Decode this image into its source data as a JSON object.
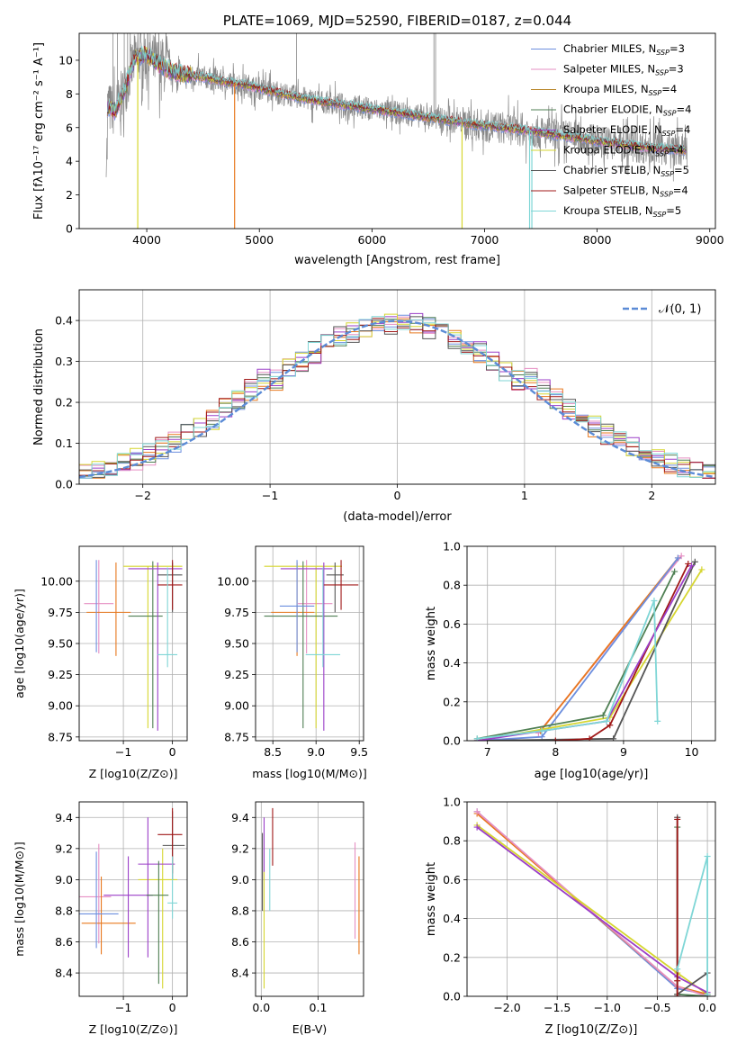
{
  "colors": {
    "c1": "#6c8ede",
    "c2": "#e68fc3",
    "c3": "#b8862a",
    "c4": "#4f7f53",
    "c5": "#9b3fc8",
    "c6": "#d6d630",
    "c7": "#555555",
    "c8": "#a01818",
    "c9": "#7fd6d6",
    "orange": "#e8781e",
    "gray": "#888888",
    "normal": "#5b8bd6",
    "grid": "#b0b0b0"
  },
  "chart_data": [
    {
      "id": "spectrum",
      "type": "line",
      "title": "PLATE=1069, MJD=52590, FIBERID=0187, z=0.044",
      "xlabel": "wavelength [Angstrom, rest frame]",
      "ylabel": "Flux [fλ10⁻¹⁷ erg cm⁻² s⁻¹ A⁻¹]",
      "xlim": [
        3400,
        9050
      ],
      "ylim": [
        0,
        11.6
      ],
      "xticks": [
        4000,
        5000,
        6000,
        7000,
        8000,
        9000
      ],
      "yticks": [
        0,
        2,
        4,
        6,
        8,
        10
      ],
      "legend": "top-right",
      "legend_entries": [
        {
          "label": "Chabrier MILES, N",
          "sub": "SSP",
          "val": "=3",
          "color": "c1"
        },
        {
          "label": "Salpeter MILES, N",
          "sub": "SSP",
          "val": "=3",
          "color": "c2"
        },
        {
          "label": "Kroupa MILES, N",
          "sub": "SSP",
          "val": "=4",
          "color": "c3"
        },
        {
          "label": "Chabrier ELODIE, N",
          "sub": "SSP",
          "val": "=4",
          "color": "c4"
        },
        {
          "label": "Salpeter ELODIE, N",
          "sub": "SSP",
          "val": "=4",
          "color": "c5"
        },
        {
          "label": "Kroupa ELODIE, N",
          "sub": "SSP",
          "val": "=4",
          "color": "c6"
        },
        {
          "label": "Chabrier STELIB, N",
          "sub": "SSP",
          "val": "=5",
          "color": "c7"
        },
        {
          "label": "Salpeter STELIB, N",
          "sub": "SSP",
          "val": "=4",
          "color": "c8"
        },
        {
          "label": "Kroupa STELIB, N",
          "sub": "SSP",
          "val": "=5",
          "color": "c9"
        }
      ],
      "model_continuum": [
        [
          3650,
          7.2
        ],
        [
          3720,
          7.0
        ],
        [
          3800,
          8.2
        ],
        [
          3900,
          10.2
        ],
        [
          4000,
          10.3
        ],
        [
          4100,
          9.8
        ],
        [
          4200,
          9.4
        ],
        [
          4300,
          9.2
        ],
        [
          4500,
          9.0
        ],
        [
          4700,
          8.7
        ],
        [
          4900,
          8.5
        ],
        [
          5200,
          8.0
        ],
        [
          5500,
          7.6
        ],
        [
          5800,
          7.3
        ],
        [
          6100,
          7.0
        ],
        [
          6400,
          6.7
        ],
        [
          6700,
          6.4
        ],
        [
          7000,
          6.1
        ],
        [
          7300,
          5.9
        ],
        [
          7500,
          5.7
        ],
        [
          7800,
          5.4
        ],
        [
          8100,
          5.1
        ],
        [
          8400,
          4.85
        ],
        [
          8700,
          4.7
        ],
        [
          8800,
          4.65
        ]
      ]
    },
    {
      "id": "residuals",
      "type": "histogram",
      "xlabel": "(data-model)/error",
      "ylabel": "Normed distribution",
      "xlim": [
        -2.5,
        2.5
      ],
      "ylim": [
        0,
        0.475
      ],
      "xticks": [
        -2,
        -1,
        0,
        1,
        2
      ],
      "yticks": [
        0.0,
        0.1,
        0.2,
        0.3,
        0.4
      ],
      "legend": "top-right",
      "normal_label": "𝒩(0, 1)",
      "bin_width": 0.1
    },
    {
      "id": "age_vs_z",
      "type": "errorbar",
      "xlabel": "Z [log10(Z/Z⊙)]",
      "ylabel": "age  [log10(age/yr)]",
      "xlim": [
        -1.9,
        0.3
      ],
      "ylim": [
        8.72,
        10.28
      ],
      "xticks": [
        -1,
        0
      ],
      "yticks": [
        8.75,
        9.0,
        9.25,
        9.5,
        9.75,
        10.0
      ],
      "points": [
        {
          "x": -1.5,
          "xerr": [
            0.3,
            0.3
          ],
          "y": 9.82,
          "yerr": [
            0.4,
            0.35
          ],
          "color": "c2"
        },
        {
          "x": -1.15,
          "xerr": [
            0.6,
            0.3
          ],
          "y": 9.75,
          "yerr": [
            0.35,
            0.4
          ],
          "color": "orange"
        },
        {
          "x": -0.5,
          "xerr": [
            0.5,
            0.7
          ],
          "y": 10.12,
          "yerr": [
            1.3,
            0.0
          ],
          "color": "c6"
        },
        {
          "x": -0.4,
          "xerr": [
            0.5,
            0.2
          ],
          "y": 9.72,
          "yerr": [
            0.9,
            0.44
          ],
          "color": "c4"
        },
        {
          "x": -0.3,
          "xerr": [
            0.6,
            0.5
          ],
          "y": 10.1,
          "yerr": [
            1.3,
            0.05
          ],
          "color": "c5"
        },
        {
          "x": 0.0,
          "xerr": [
            0.3,
            0.2
          ],
          "y": 10.05,
          "yerr": [
            0.3,
            0.1
          ],
          "color": "c7"
        },
        {
          "x": 0.0,
          "xerr": [
            0.3,
            0.2
          ],
          "y": 9.97,
          "yerr": [
            0.2,
            0.2
          ],
          "color": "c8"
        },
        {
          "x": -0.1,
          "xerr": [
            0.2,
            0.2
          ],
          "y": 9.41,
          "yerr": [
            0.1,
            0.7
          ],
          "color": "c9"
        },
        {
          "x": -1.55,
          "xerr": [
            0.0,
            0.0
          ],
          "y": 9.8,
          "yerr": [
            0.37,
            0.37
          ],
          "color": "c1"
        }
      ]
    },
    {
      "id": "age_vs_mass",
      "type": "errorbar",
      "xlabel": "mass [log10(M/M⊙)]",
      "ylabel": "",
      "xlim": [
        8.3,
        9.55
      ],
      "ylim": [
        8.72,
        10.28
      ],
      "xticks": [
        8.5,
        9.0,
        9.5
      ],
      "yticks": [
        8.75,
        9.0,
        9.25,
        9.5,
        9.75,
        10.0
      ],
      "points": [
        {
          "x": 8.89,
          "xerr": [
            0.1,
            0.3
          ],
          "y": 9.82,
          "yerr": [
            0.4,
            0.35
          ],
          "color": "c2"
        },
        {
          "x": 8.78,
          "xerr": [
            0.3,
            0.2
          ],
          "y": 9.75,
          "yerr": [
            0.35,
            0.4
          ],
          "color": "orange"
        },
        {
          "x": 9.0,
          "xerr": [
            0.6,
            0.3
          ],
          "y": 10.12,
          "yerr": [
            1.3,
            0.0
          ],
          "color": "c6"
        },
        {
          "x": 8.85,
          "xerr": [
            0.45,
            0.4
          ],
          "y": 9.72,
          "yerr": [
            0.9,
            0.44
          ],
          "color": "c4"
        },
        {
          "x": 9.09,
          "xerr": [
            0.5,
            0.1
          ],
          "y": 10.1,
          "yerr": [
            1.3,
            0.05
          ],
          "color": "c5"
        },
        {
          "x": 9.22,
          "xerr": [
            0.1,
            0.1
          ],
          "y": 10.05,
          "yerr": [
            0.3,
            0.1
          ],
          "color": "c7"
        },
        {
          "x": 9.29,
          "xerr": [
            0.2,
            0.2
          ],
          "y": 9.97,
          "yerr": [
            0.2,
            0.2
          ],
          "color": "c8"
        },
        {
          "x": 9.08,
          "xerr": [
            0.2,
            0.2
          ],
          "y": 9.41,
          "yerr": [
            0.1,
            0.7
          ],
          "color": "c9"
        },
        {
          "x": 8.78,
          "xerr": [
            0.2,
            0.2
          ],
          "y": 9.8,
          "yerr": [
            0.37,
            0.37
          ],
          "color": "c1"
        }
      ]
    },
    {
      "id": "weight_vs_age",
      "type": "line",
      "xlabel": "age  [log10(age/yr)]",
      "ylabel": "mass weight",
      "xlim": [
        6.7,
        10.35
      ],
      "ylim": [
        0,
        1.0
      ],
      "xticks": [
        7,
        8,
        9,
        10
      ],
      "yticks": [
        0.0,
        0.2,
        0.4,
        0.6,
        0.8,
        1.0
      ],
      "series": [
        {
          "color": "c2",
          "points": [
            [
              7.75,
              0.04
            ],
            [
              9.85,
              0.95
            ]
          ]
        },
        {
          "color": "orange",
          "points": [
            [
              7.78,
              0.05
            ],
            [
              9.8,
              0.94
            ]
          ]
        },
        {
          "color": "c1",
          "points": [
            [
              6.85,
              0.0
            ],
            [
              7.8,
              0.02
            ],
            [
              9.8,
              0.94
            ]
          ]
        },
        {
          "color": "c6",
          "points": [
            [
              6.85,
              0.0
            ],
            [
              8.8,
              0.12
            ],
            [
              10.15,
              0.88
            ]
          ]
        },
        {
          "color": "c4",
          "points": [
            [
              6.85,
              0.01
            ],
            [
              8.7,
              0.13
            ],
            [
              9.75,
              0.87
            ]
          ]
        },
        {
          "color": "c7",
          "points": [
            [
              6.85,
              0.0
            ],
            [
              8.85,
              0.01
            ],
            [
              10.05,
              0.92
            ]
          ]
        },
        {
          "color": "c8",
          "points": [
            [
              8.0,
              0.0
            ],
            [
              8.5,
              0.01
            ],
            [
              8.8,
              0.08
            ],
            [
              9.95,
              0.91
            ]
          ]
        },
        {
          "color": "c5",
          "points": [
            [
              6.85,
              0.0
            ],
            [
              8.75,
              0.1
            ],
            [
              10.0,
              0.9
            ]
          ]
        },
        {
          "color": "c9",
          "points": [
            [
              6.85,
              0.01
            ],
            [
              7.8,
              0.05
            ],
            [
              8.75,
              0.1
            ],
            [
              9.45,
              0.72
            ],
            [
              9.5,
              0.1
            ]
          ]
        }
      ]
    },
    {
      "id": "mass_vs_z",
      "type": "errorbar",
      "xlabel": "Z [log10(Z/Z⊙)]",
      "ylabel": "mass [log10(M/M⊙)]",
      "xlim": [
        -1.9,
        0.3
      ],
      "ylim": [
        8.25,
        9.5
      ],
      "xticks": [
        -1,
        0
      ],
      "yticks": [
        8.4,
        8.6,
        8.8,
        9.0,
        9.2,
        9.4
      ],
      "points": [
        {
          "x": -1.5,
          "xerr": [
            0.4,
            0.25
          ],
          "y": 8.89,
          "yerr": [
            0.3,
            0.34
          ],
          "color": "c2"
        },
        {
          "x": -1.45,
          "xerr": [
            0.4,
            0.7
          ],
          "y": 8.72,
          "yerr": [
            0.2,
            0.3
          ],
          "color": "orange"
        },
        {
          "x": -1.55,
          "xerr": [
            0.4,
            0.45
          ],
          "y": 8.78,
          "yerr": [
            0.22,
            0.4
          ],
          "color": "c1"
        },
        {
          "x": -0.9,
          "xerr": [
            0.5,
            0.5
          ],
          "y": 8.9,
          "yerr": [
            0.4,
            0.25
          ],
          "color": "c5"
        },
        {
          "x": -0.2,
          "xerr": [
            0.5,
            0.3
          ],
          "y": 9.0,
          "yerr": [
            0.7,
            0.2
          ],
          "color": "c6"
        },
        {
          "x": -0.5,
          "xerr": [
            0.2,
            0.55
          ],
          "y": 9.1,
          "yerr": [
            0.6,
            0.3
          ],
          "color": "c5"
        },
        {
          "x": -0.28,
          "xerr": [
            0.25,
            0.2
          ],
          "y": 8.9,
          "yerr": [
            0.57,
            0.22
          ],
          "color": "c4"
        },
        {
          "x": 0.0,
          "xerr": [
            0.2,
            0.25
          ],
          "y": 9.22,
          "yerr": [
            0.22,
            0.22
          ],
          "color": "c7"
        },
        {
          "x": 0.0,
          "xerr": [
            0.3,
            0.2
          ],
          "y": 9.29,
          "yerr": [
            0.25,
            0.17
          ],
          "color": "c8"
        },
        {
          "x": 0.0,
          "xerr": [
            0.1,
            0.1
          ],
          "y": 8.85,
          "yerr": [
            0.1,
            0.3
          ],
          "color": "c9"
        }
      ]
    },
    {
      "id": "mass_vs_ebv",
      "type": "errorbar",
      "xlabel": "E(B-V)",
      "ylabel": "",
      "xlim": [
        -0.01,
        0.18
      ],
      "ylim": [
        8.25,
        9.5
      ],
      "xticks": [
        0.0,
        0.1
      ],
      "yticks": [
        8.4,
        8.6,
        8.8,
        9.0,
        9.2,
        9.4
      ],
      "points": [
        {
          "x": 0.005,
          "xerr": [
            0,
            0
          ],
          "y": 9.3,
          "yerr": [
            0.3,
            0.1
          ],
          "color": "c5"
        },
        {
          "x": 0.02,
          "xerr": [
            0,
            0
          ],
          "y": 9.29,
          "yerr": [
            0.2,
            0.17
          ],
          "color": "c8"
        },
        {
          "x": 0.015,
          "xerr": [
            0,
            0
          ],
          "y": 9.0,
          "yerr": [
            0.2,
            0.2
          ],
          "color": "c9"
        },
        {
          "x": 0.005,
          "xerr": [
            0,
            0
          ],
          "y": 8.8,
          "yerr": [
            0.5,
            0.25
          ],
          "color": "c6"
        },
        {
          "x": 0.002,
          "xerr": [
            0,
            0
          ],
          "y": 9.1,
          "yerr": [
            0.3,
            0.2
          ],
          "color": "c7"
        },
        {
          "x": 0.165,
          "xerr": [
            0,
            0
          ],
          "y": 8.92,
          "yerr": [
            0.3,
            0.32
          ],
          "color": "c2"
        },
        {
          "x": 0.172,
          "xerr": [
            0,
            0
          ],
          "y": 8.85,
          "yerr": [
            0.33,
            0.3
          ],
          "color": "orange"
        }
      ]
    },
    {
      "id": "weight_vs_z",
      "type": "line",
      "xlabel": "Z [log10(Z/Z⊙)]",
      "ylabel": "mass weight",
      "xlim": [
        -2.4,
        0.08
      ],
      "ylim": [
        0,
        1.0
      ],
      "xticks": [
        -2.0,
        -1.5,
        -1.0,
        -0.5,
        0.0
      ],
      "yticks": [
        0.0,
        0.2,
        0.4,
        0.6,
        0.8,
        1.0
      ],
      "series": [
        {
          "color": "c1",
          "points": [
            [
              -2.3,
              0.95
            ],
            [
              -0.3,
              0.04
            ],
            [
              0.0,
              0.01
            ]
          ]
        },
        {
          "color": "orange",
          "points": [
            [
              -2.3,
              0.94
            ],
            [
              -0.3,
              0.05
            ],
            [
              0.0,
              0.01
            ]
          ]
        },
        {
          "color": "c2",
          "points": [
            [
              -2.3,
              0.95
            ],
            [
              -0.3,
              0.05
            ],
            [
              0.0,
              0.0
            ]
          ]
        },
        {
          "color": "c6",
          "points": [
            [
              -2.3,
              0.88
            ],
            [
              -0.3,
              0.12
            ],
            [
              0.0,
              0.01
            ]
          ]
        },
        {
          "color": "c5",
          "points": [
            [
              -2.3,
              0.87
            ],
            [
              -0.3,
              0.1
            ],
            [
              0.0,
              0.02
            ]
          ]
        },
        {
          "color": "c4",
          "points": [
            [
              -0.3,
              0.87
            ],
            [
              -0.3,
              0.01
            ],
            [
              0.0,
              0.0
            ]
          ]
        },
        {
          "color": "c7",
          "points": [
            [
              -0.3,
              0.92
            ],
            [
              -0.3,
              0.01
            ],
            [
              0.0,
              0.12
            ],
            [
              0.0,
              0.0
            ]
          ]
        },
        {
          "color": "c8",
          "points": [
            [
              -0.3,
              0.91
            ],
            [
              -0.3,
              0.0
            ],
            [
              -0.3,
              0.08
            ]
          ]
        },
        {
          "color": "c9",
          "points": [
            [
              -0.3,
              0.14
            ],
            [
              0.0,
              0.72
            ],
            [
              0.0,
              0.01
            ]
          ]
        }
      ]
    }
  ]
}
